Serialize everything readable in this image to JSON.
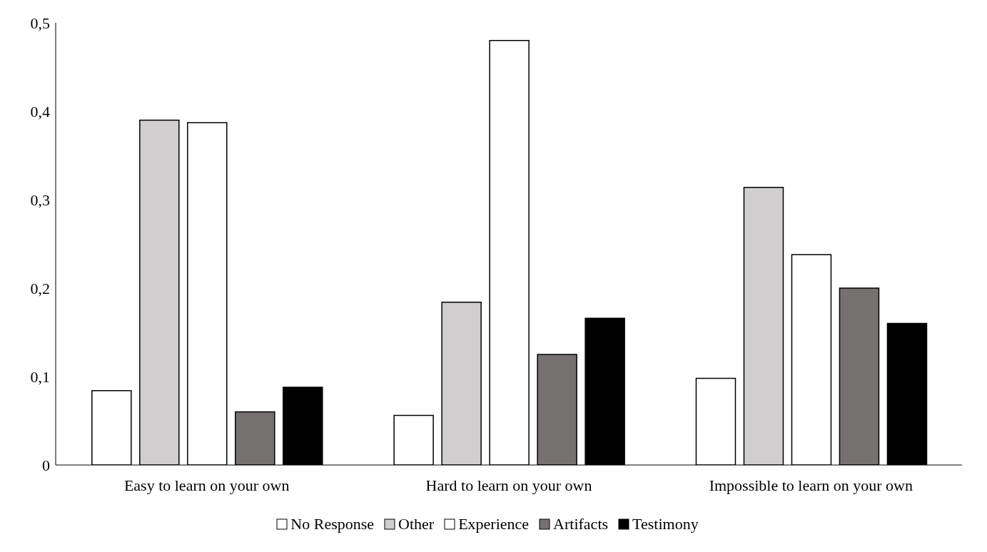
{
  "chart_data": {
    "type": "bar",
    "categories": [
      "Easy to learn on your own",
      "Hard to learn on your own",
      "Impossible to learn on your own"
    ],
    "series": [
      {
        "name": "No Response",
        "color": "#ffffff",
        "values": [
          0.084,
          0.056,
          0.098
        ]
      },
      {
        "name": "Other",
        "color": "#d0cece",
        "values": [
          0.39,
          0.184,
          0.314
        ]
      },
      {
        "name": "Experience",
        "color": "#ffffff",
        "values": [
          0.387,
          0.48,
          0.238
        ]
      },
      {
        "name": "Artifacts",
        "color": "#767171",
        "values": [
          0.06,
          0.125,
          0.2
        ]
      },
      {
        "name": "Testimony",
        "color": "#000000",
        "values": [
          0.088,
          0.166,
          0.16
        ]
      }
    ],
    "ylim": [
      0,
      0.5
    ],
    "yticks": [
      {
        "value": 0,
        "label": "0"
      },
      {
        "value": 0.1,
        "label": "0,1"
      },
      {
        "value": 0.2,
        "label": "0,2"
      },
      {
        "value": 0.3,
        "label": "0,3"
      },
      {
        "value": 0.4,
        "label": "0,4"
      },
      {
        "value": 0.5,
        "label": "0,5"
      }
    ],
    "grid": false,
    "legend": "bottom"
  }
}
